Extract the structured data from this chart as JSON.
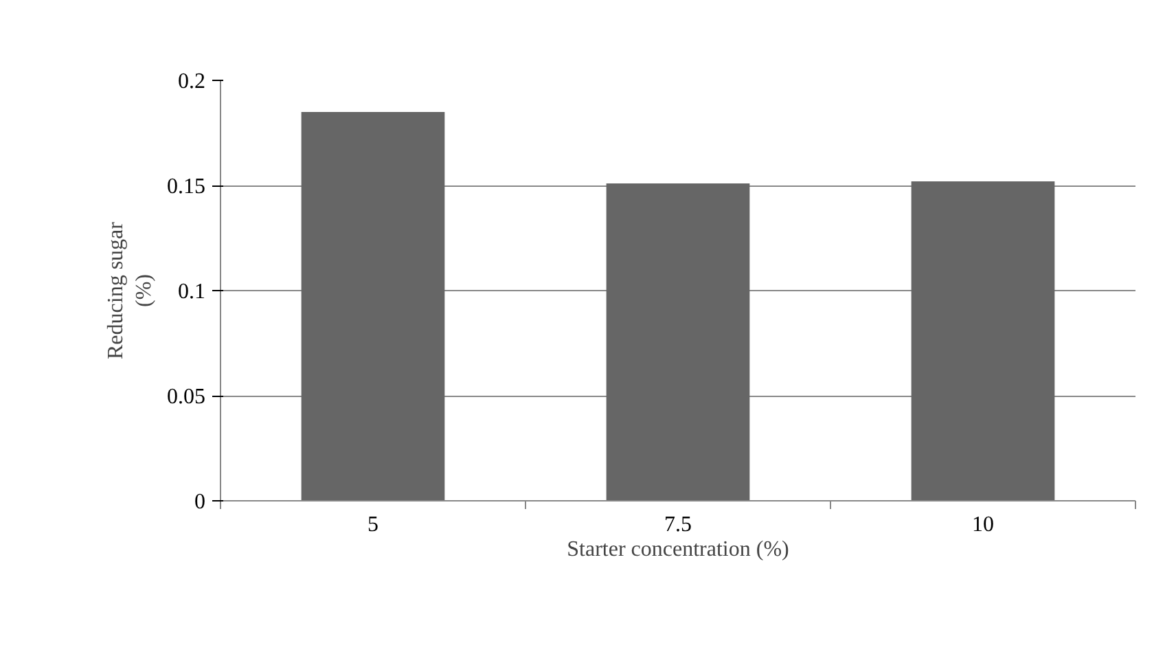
{
  "chart_data": {
    "type": "bar",
    "xlabel": "Starter concentration (%)",
    "ylabel": "Reducing sugar\n(%)",
    "categories": [
      "5",
      "7.5",
      "10"
    ],
    "values": [
      0.185,
      0.151,
      0.152
    ],
    "color": "#666666",
    "ylim": [
      0,
      0.2
    ],
    "yticks": [
      0,
      0.05,
      0.1,
      0.15,
      0.2
    ],
    "grid": "y"
  }
}
